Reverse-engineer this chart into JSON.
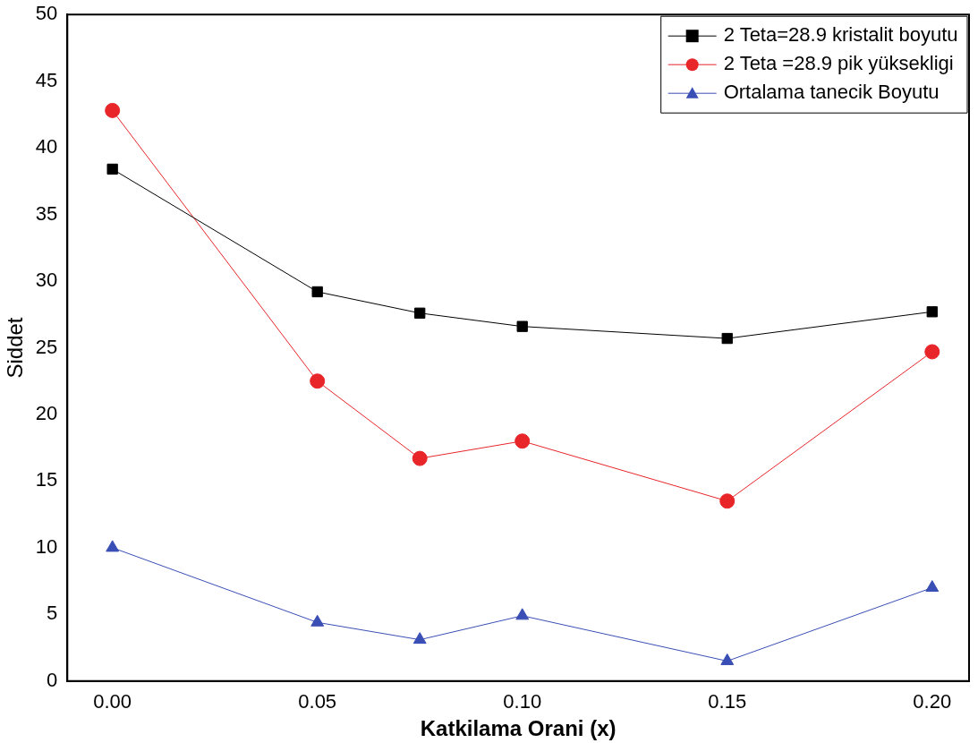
{
  "chart_data": {
    "type": "line",
    "xlabel": "Katkilama Orani (x)",
    "ylabel": "Siddet",
    "x": [
      0,
      0.05,
      0.075,
      0.1,
      0.15,
      0.2
    ],
    "series": [
      {
        "name": "2 Teta=28.9 kristalit boyutu",
        "color": "#000000",
        "marker": "square",
        "values": [
          38.4,
          29.2,
          27.6,
          26.6,
          25.7,
          27.7
        ]
      },
      {
        "name": "2 Teta =28.9 pik yüksekligi",
        "color": "#e8262a",
        "marker": "circle",
        "values": [
          42.8,
          22.5,
          16.7,
          18.0,
          13.5,
          24.7
        ]
      },
      {
        "name": "Ortalama tanecik Boyutu",
        "color": "#3a4fb5",
        "marker": "triangle",
        "values": [
          10.0,
          4.4,
          3.1,
          4.9,
          1.5,
          7.0
        ]
      }
    ],
    "xlim": [
      -0.011,
      0.209
    ],
    "xticks": [
      {
        "value": 0,
        "label": "0.00"
      },
      {
        "value": 0.05,
        "label": "0.05"
      },
      {
        "value": 0.1,
        "label": "0.10"
      },
      {
        "value": 0.15,
        "label": "0.15"
      },
      {
        "value": 0.2,
        "label": "0.20"
      }
    ],
    "ylim": [
      0,
      50
    ],
    "yticks": [
      0,
      5,
      10,
      15,
      20,
      25,
      30,
      35,
      40,
      45,
      50
    ],
    "grid": false,
    "legend": "top right"
  }
}
